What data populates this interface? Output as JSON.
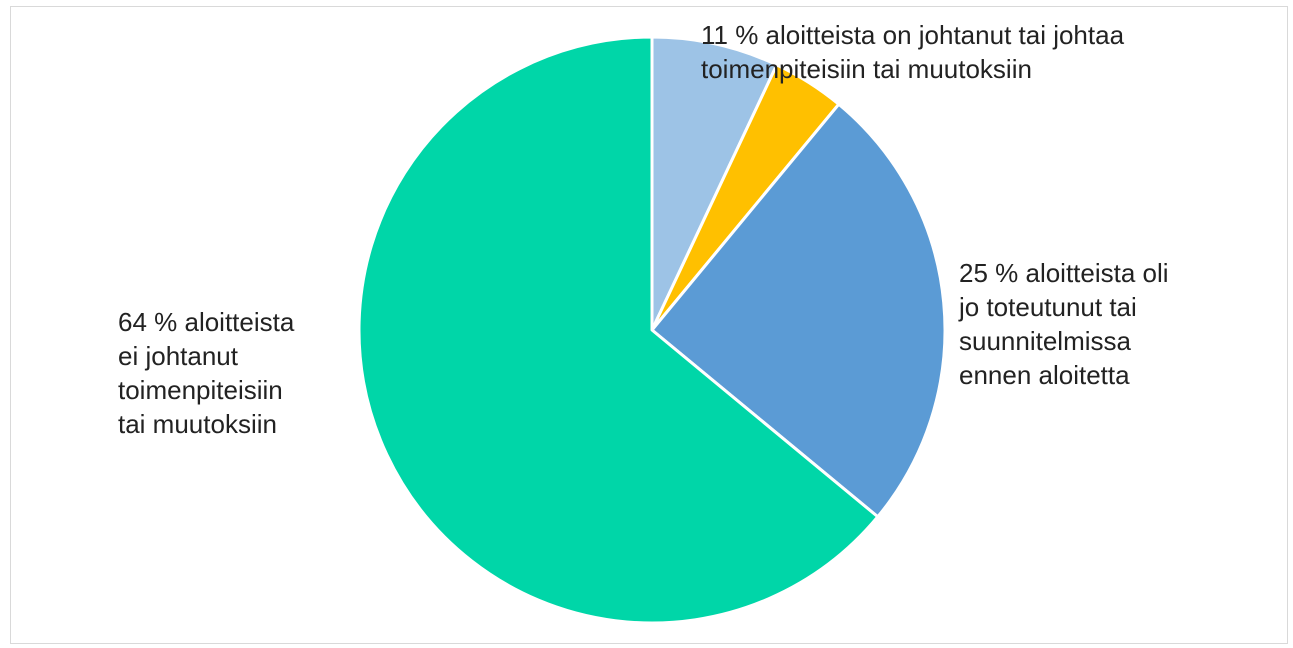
{
  "chart_data": {
    "type": "pie",
    "title": "",
    "slices": [
      {
        "label": "",
        "value": 7,
        "color": "#9DC3E6"
      },
      {
        "label": "",
        "value": 4,
        "color": "#FFC000"
      },
      {
        "label": "25 % aloitteista oli jo toteutunut tai suunnitelmissa ennen aloitetta",
        "value": 25,
        "color": "#5B9BD5"
      },
      {
        "label": "64 % aloitteista ei johtanut toimenpiteisiin tai muutoksiin",
        "value": 64,
        "color": "#00D6A8"
      }
    ],
    "annotations": [
      "11 % aloitteista on johtanut tai johtaa toimenpiteisiin tai muutoksiin"
    ],
    "legend": "none"
  },
  "labels": {
    "eleven": "11 % aloitteista on johtanut tai johtaa\ntoimenpiteisiin tai muutoksiin",
    "twentyfive": "25 % aloitteista oli\njo toteutunut tai\nsuunnitelmissa\nennen aloitetta",
    "sixtyfour": "64 % aloitteista\nei johtanut\ntoimenpiteisiin\ntai muutoksiin"
  }
}
